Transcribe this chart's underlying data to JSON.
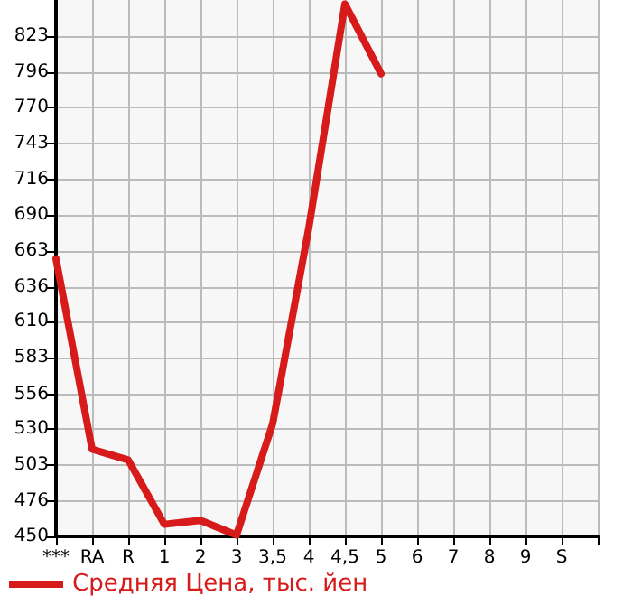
{
  "chart_data": {
    "type": "line",
    "categories": [
      "***",
      "RA",
      "R",
      "1",
      "2",
      "3",
      "3,5",
      "4",
      "4,5",
      "5",
      "6",
      "7",
      "8",
      "9",
      "S",
      null
    ],
    "series": [
      {
        "name": "Средняя Цена, тыс. йен",
        "color": "#d71a1a",
        "values": [
          657,
          515,
          507,
          459,
          462,
          451,
          534,
          680,
          847,
          795,
          null,
          null,
          null,
          null,
          null,
          null
        ]
      }
    ],
    "ylim": [
      450,
      850
    ],
    "yticks": [
      450,
      476,
      503,
      530,
      556,
      583,
      610,
      636,
      663,
      690,
      716,
      743,
      770,
      796,
      823
    ],
    "grid": true,
    "legend": "bottom left",
    "marker": "none",
    "line_style": "solid"
  }
}
